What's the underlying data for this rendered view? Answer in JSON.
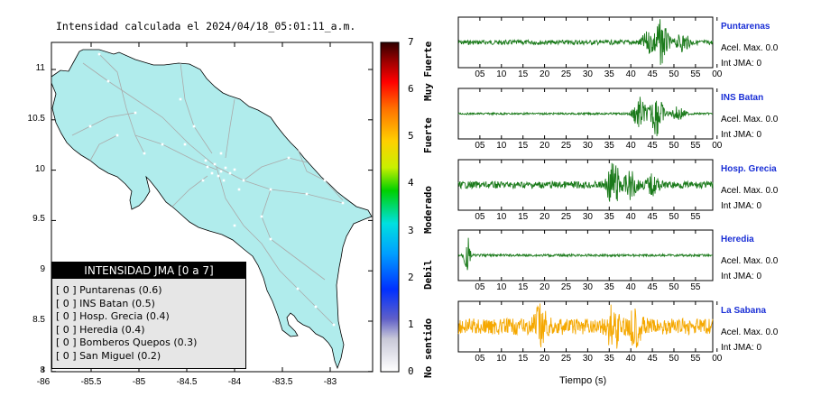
{
  "map": {
    "title": "Intensidad calculada el 2024/04/18_05:01:11_a.m.",
    "x_ticks": [
      "-86",
      "-85.5",
      "-85",
      "-84.5",
      "-84",
      "-83.5",
      "-83"
    ],
    "y_ticks": [
      "11",
      "10.5",
      "10",
      "9.5",
      "9",
      "8.5",
      "8"
    ],
    "fill_color": "#b0ecec",
    "road_color": "#aaaaaa"
  },
  "legend": {
    "header": "INTENSIDAD JMA [0 a 7]",
    "items": [
      "[ 0 ] Puntarenas (0.6)",
      "[ 0 ] INS Batan (0.5)",
      "[ 0 ] Hosp. Grecia (0.4)",
      "[ 0 ] Heredia (0.4)",
      "[ 0 ] Bomberos Quepos (0.3)",
      "[ 0 ] San Miguel (0.2)"
    ]
  },
  "colorbar": {
    "ticks": [
      "0",
      "1",
      "2",
      "3",
      "4",
      "5",
      "6",
      "7"
    ],
    "labels": [
      "No sentido",
      "Debil",
      "Moderado",
      "Fuerte",
      "Muy Fuerte"
    ],
    "range": [
      0,
      7
    ]
  },
  "chart_data": [
    {
      "type": "map",
      "title": "Intensidad calculada el 2024/04/18_05:01:11_a.m.",
      "xlim": [
        -86,
        -82.6
      ],
      "ylim": [
        8,
        11.3
      ]
    },
    {
      "type": "line",
      "xlabel": "Tiempo (s)",
      "panels": [
        {
          "station": "Puntarenas",
          "accel_label": "Acel. Max. 0.0",
          "jma_label": "Int JMA: 0",
          "color": "#1a7a1a",
          "x_ticks": [
            "05",
            "10",
            "15",
            "20",
            "25",
            "30",
            "35",
            "40",
            "45",
            "50",
            "55",
            "00"
          ],
          "bursts": [
            {
              "t": 47,
              "amp": 0.95
            },
            {
              "t": 44,
              "amp": 0.4
            },
            {
              "t": 52,
              "amp": 0.35
            }
          ],
          "noise": 0.1
        },
        {
          "station": "INS Batan",
          "accel_label": "Acel. Max. 0.0",
          "jma_label": "Int JMA: 0",
          "color": "#1a7a1a",
          "x_ticks": [
            "05",
            "10",
            "15",
            "20",
            "25",
            "30",
            "35",
            "40",
            "45",
            "50",
            "55",
            "00"
          ],
          "bursts": [
            {
              "t": 42,
              "amp": 0.7
            },
            {
              "t": 46,
              "amp": 0.95
            },
            {
              "t": 51,
              "amp": 0.3
            }
          ],
          "noise": 0.04
        },
        {
          "station": "Hosp. Grecia",
          "accel_label": "Acel. Max. 0.0",
          "jma_label": "Int JMA: 0",
          "color": "#1a7a1a",
          "x_ticks": [
            "05",
            "10",
            "15",
            "20",
            "25",
            "30",
            "35",
            "40",
            "45",
            "50",
            "55"
          ],
          "bursts": [
            {
              "t": 36,
              "amp": 0.95
            },
            {
              "t": 40,
              "amp": 0.5
            },
            {
              "t": 45,
              "amp": 0.35
            }
          ],
          "noise": 0.15
        },
        {
          "station": "Heredia",
          "accel_label": "Acel. Max. 0.0",
          "jma_label": "Int JMA: 0",
          "color": "#1a7a1a",
          "x_ticks": [
            "05",
            "10",
            "15",
            "20",
            "25",
            "30",
            "35",
            "40",
            "45",
            "50",
            "55"
          ],
          "bursts": [
            {
              "t": 2,
              "amp": 0.95
            }
          ],
          "noise": 0.05
        },
        {
          "station": "La Sabana",
          "accel_label": "Acel. Max. 0.0",
          "jma_label": "Int JMA: 0",
          "color": "#f5a800",
          "x_ticks": [
            "05",
            "10",
            "15",
            "20",
            "25",
            "30",
            "35",
            "40",
            "45",
            "50",
            "55",
            "00"
          ],
          "bursts": [
            {
              "t": 19,
              "amp": 0.7
            },
            {
              "t": 36,
              "amp": 0.9
            },
            {
              "t": 41,
              "amp": 0.6
            }
          ],
          "noise": 0.35
        }
      ]
    }
  ]
}
